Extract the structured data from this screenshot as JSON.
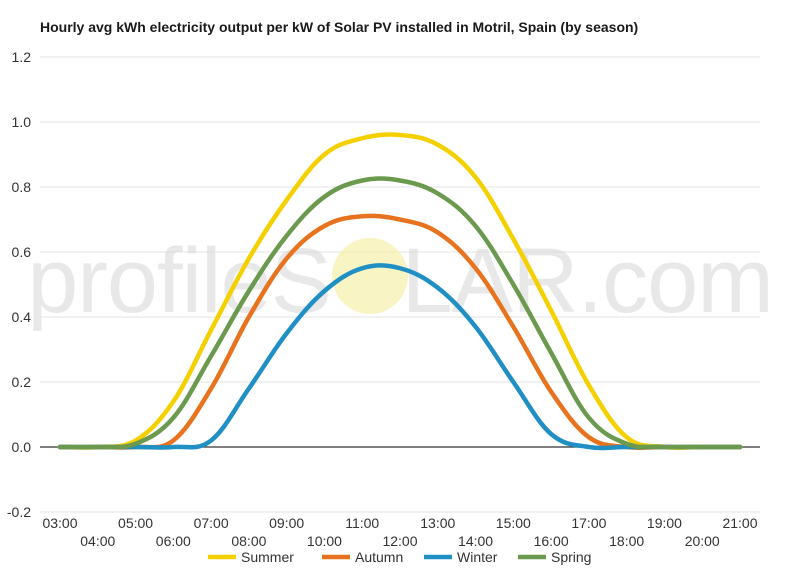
{
  "chart_data": {
    "type": "line",
    "title": "Hourly avg kWh electricity output per kW of Solar PV installed in Motril, Spain (by season)",
    "xlabel": "",
    "ylabel": "",
    "ylim": [
      -0.2,
      1.2
    ],
    "yticks": [
      "-0.2",
      "0.0",
      "0.2",
      "0.4",
      "0.6",
      "0.8",
      "1.0",
      "1.2"
    ],
    "y_tick_values": [
      -0.2,
      0.0,
      0.2,
      0.4,
      0.6,
      0.8,
      1.0,
      1.2
    ],
    "x_hours": [
      3,
      4,
      5,
      6,
      7,
      8,
      9,
      10,
      11,
      12,
      13,
      14,
      15,
      16,
      17,
      18,
      19,
      20,
      21
    ],
    "categories": [
      "03:00",
      "04:00",
      "05:00",
      "06:00",
      "07:00",
      "08:00",
      "09:00",
      "10:00",
      "11:00",
      "12:00",
      "13:00",
      "14:00",
      "15:00",
      "16:00",
      "17:00",
      "18:00",
      "19:00",
      "20:00",
      "21:00"
    ],
    "grid": true,
    "legend_position": "bottom",
    "series": [
      {
        "name": "Summer",
        "color": "#f5d000",
        "values": [
          0.0,
          0.0,
          0.02,
          0.14,
          0.36,
          0.58,
          0.76,
          0.9,
          0.95,
          0.96,
          0.93,
          0.83,
          0.64,
          0.42,
          0.19,
          0.03,
          0.0,
          0.0,
          0.0
        ]
      },
      {
        "name": "Autumn",
        "color": "#e8731e",
        "values": [
          0.0,
          0.0,
          0.0,
          0.02,
          0.18,
          0.4,
          0.58,
          0.68,
          0.71,
          0.7,
          0.66,
          0.55,
          0.37,
          0.17,
          0.03,
          0.0,
          0.0,
          0.0,
          0.0
        ]
      },
      {
        "name": "Winter",
        "color": "#1f8fc4",
        "values": [
          0.0,
          0.0,
          0.0,
          0.0,
          0.02,
          0.18,
          0.35,
          0.48,
          0.55,
          0.55,
          0.49,
          0.37,
          0.2,
          0.04,
          0.0,
          0.0,
          0.0,
          0.0,
          0.0
        ]
      },
      {
        "name": "Spring",
        "color": "#6b9a4f",
        "values": [
          0.0,
          0.0,
          0.01,
          0.09,
          0.28,
          0.48,
          0.65,
          0.77,
          0.82,
          0.82,
          0.78,
          0.68,
          0.5,
          0.29,
          0.09,
          0.01,
          0.0,
          0.0,
          0.0
        ]
      }
    ]
  },
  "watermark": {
    "text_before": "profileS",
    "text_after": "LAR.com"
  }
}
